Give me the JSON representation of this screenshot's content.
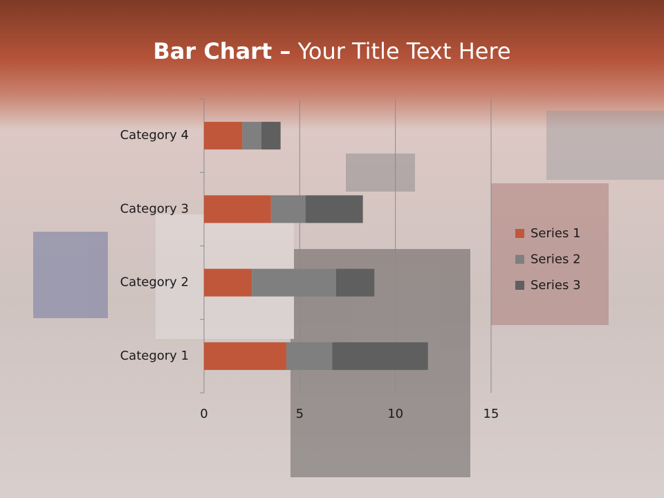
{
  "chart_data": {
    "type": "stacked-bar-horizontal",
    "title_bold": "Bar Chart –",
    "title": "Your Title Text Here",
    "categories": [
      "Category 1",
      "Category 2",
      "Category 3",
      "Category 4"
    ],
    "series": [
      {
        "name": "Series 1",
        "color": "#c0573a",
        "values": [
          4.3,
          2.5,
          3.5,
          2
        ]
      },
      {
        "name": "Series 2",
        "color": "#7f7f7f",
        "values": [
          2.4,
          4.4,
          1.8,
          1
        ]
      },
      {
        "name": "Series 3",
        "color": "#5f5f5f",
        "values": [
          5,
          2,
          3,
          1
        ]
      }
    ],
    "xlim": [
      0,
      15
    ],
    "xticks": [
      0,
      5,
      10,
      15
    ],
    "grid": true,
    "legend": "right"
  }
}
